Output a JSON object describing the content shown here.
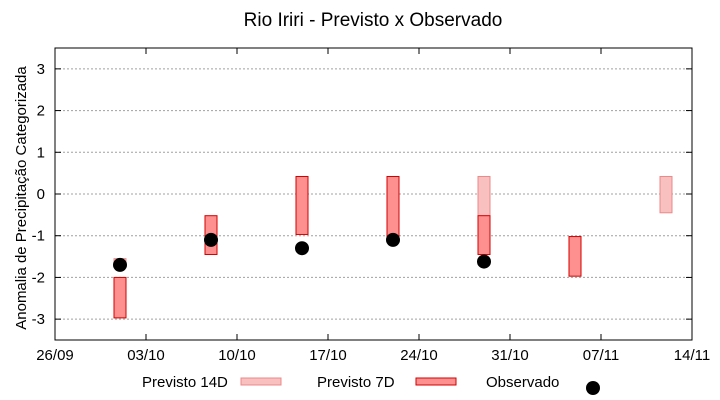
{
  "chart_data": {
    "type": "range-bar-scatter",
    "title": "Rio Iriri - Previsto x Observado",
    "xlabel": "",
    "ylabel": "Anomalia de Precipitação Categorizada",
    "ylim": [
      -3.5,
      3.5
    ],
    "yticks": [
      -3,
      -2,
      -1,
      0,
      1,
      2,
      3
    ],
    "x_unit": "days since 26/09",
    "xlim": [
      0,
      49
    ],
    "xticks": [
      {
        "day": 0,
        "label": "26/09"
      },
      {
        "day": 7,
        "label": "03/10"
      },
      {
        "day": 14,
        "label": "10/10"
      },
      {
        "day": 21,
        "label": "17/10"
      },
      {
        "day": 28,
        "label": "24/10"
      },
      {
        "day": 35,
        "label": "31/10"
      },
      {
        "day": 42,
        "label": "07/11"
      },
      {
        "day": 49,
        "label": "14/11"
      }
    ],
    "grid": true,
    "legend_position": "bottom",
    "series": [
      {
        "name": "Previsto 14D",
        "color": "#f9c0c0",
        "edge": "#ec8888",
        "ranges": [
          {
            "day": 5,
            "low": -1.75,
            "high": -1.55
          },
          {
            "day": 33,
            "low": -0.55,
            "high": 0.42
          },
          {
            "day": 47,
            "low": -0.45,
            "high": 0.42
          }
        ]
      },
      {
        "name": "Previsto 7D",
        "color": "#ff9090",
        "edge": "#d00000",
        "ranges": [
          {
            "day": 5,
            "low": -2.97,
            "high": -2.0
          },
          {
            "day": 12,
            "low": -1.45,
            "high": -0.52
          },
          {
            "day": 19,
            "low": -0.97,
            "high": 0.42
          },
          {
            "day": 26,
            "low": -1.05,
            "high": 0.42
          },
          {
            "day": 33,
            "low": -1.45,
            "high": -0.52
          },
          {
            "day": 40,
            "low": -1.97,
            "high": -1.02
          }
        ]
      },
      {
        "name": "Observado",
        "color": "#000000",
        "points": [
          {
            "day": 5,
            "value": -1.7
          },
          {
            "day": 12,
            "value": -1.1
          },
          {
            "day": 19,
            "value": -1.3
          },
          {
            "day": 26,
            "value": -1.1
          },
          {
            "day": 33,
            "value": -1.62
          }
        ]
      }
    ]
  }
}
